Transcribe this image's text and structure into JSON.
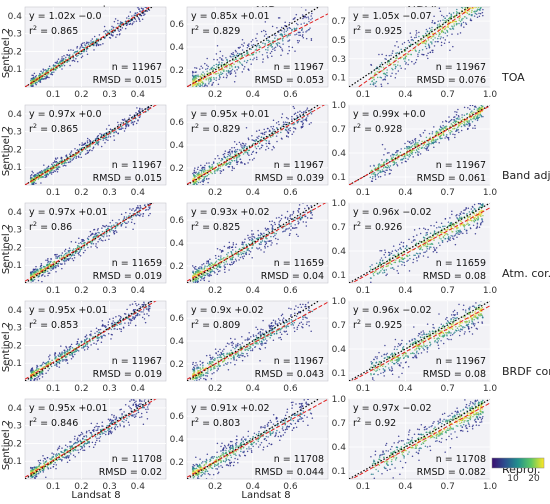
{
  "figure": {
    "column_titles": [
      "red",
      "NIR",
      "NDVI"
    ],
    "row_titles": [
      "TOA",
      "Band adj.",
      "Atm. cor.",
      "BRDF cor.",
      "Reproj."
    ],
    "ylabel": "Sentinel 2",
    "xlabel": "Landsat 8",
    "colorbar": {
      "tick_labels": [
        "10",
        "20"
      ],
      "range": [
        0,
        25
      ],
      "colors": [
        "#3b0f70",
        "#2c4f8f",
        "#21908d",
        "#5dc863",
        "#fde725"
      ]
    },
    "accent_colors": {
      "points": "#2a2a8a",
      "one_to_one": "#000000",
      "fit_line": "#e02020",
      "panel_bg": "#f2f2f6"
    }
  },
  "chart_data": [
    {
      "type": "scatter",
      "col": 0,
      "row": 0,
      "title": "red",
      "row_label": "TOA",
      "xlim": [
        0,
        0.5
      ],
      "ylim": [
        0,
        0.45
      ],
      "xticks": [
        "0.1",
        "0.2",
        "0.3",
        "0.4"
      ],
      "xtick_values": [
        0.1,
        0.2,
        0.3,
        0.4
      ],
      "yticks": [
        "0.1",
        "0.2",
        "0.3",
        "0.4"
      ],
      "ytick_values": [
        0.1,
        0.2,
        0.3,
        0.4
      ],
      "equation": "y = 1.02x −0.0",
      "r2_label": "r",
      "r2_value": "= 0.865",
      "n": "n = 11967",
      "rmsd": "RMSD = 0.015",
      "slope": 1.02,
      "intercept": 0.0,
      "n_value": 11967,
      "rmsd_value": 0.015,
      "r2": 0.865
    },
    {
      "type": "scatter",
      "col": 1,
      "row": 0,
      "title": "NIR",
      "row_label": "TOA",
      "xlim": [
        0.05,
        0.8
      ],
      "ylim": [
        0.05,
        0.75
      ],
      "xticks": [
        "0.2",
        "0.4",
        "0.6"
      ],
      "xtick_values": [
        0.2,
        0.4,
        0.6
      ],
      "yticks": [
        "0.2",
        "0.4",
        "0.6"
      ],
      "ytick_values": [
        0.2,
        0.4,
        0.6
      ],
      "equation": "y = 0.85x +0.01",
      "r2_label": "r",
      "r2_value": "= 0.829",
      "n": "n = 11967",
      "rmsd": "RMSD = 0.053",
      "slope": 0.85,
      "intercept": 0.01,
      "n_value": 11967,
      "rmsd_value": 0.053,
      "r2": 0.829
    },
    {
      "type": "scatter",
      "col": 2,
      "row": 0,
      "title": "NDVI",
      "row_label": "TOA",
      "xlim": [
        0,
        1.0
      ],
      "ylim": [
        0,
        0.85
      ],
      "xticks": [
        "0.1",
        "0.4",
        "0.7",
        "1.0"
      ],
      "xtick_values": [
        0.1,
        0.4,
        0.7,
        1.0
      ],
      "yticks": [
        "0.1",
        "0.3",
        "0.5",
        "0.7"
      ],
      "ytick_values": [
        0.1,
        0.3,
        0.5,
        0.7
      ],
      "equation": "y = 1.05x −0.07",
      "r2_label": "r",
      "r2_value": "= 0.925",
      "n": "n = 11967",
      "rmsd": "RMSD = 0.076",
      "slope": 1.05,
      "intercept": -0.07,
      "n_value": 11967,
      "rmsd_value": 0.076,
      "r2": 0.925
    },
    {
      "type": "scatter",
      "col": 0,
      "row": 1,
      "title": "red",
      "row_label": "Band adj.",
      "xlim": [
        0,
        0.5
      ],
      "ylim": [
        0,
        0.45
      ],
      "xticks": [
        "0.1",
        "0.2",
        "0.3",
        "0.4"
      ],
      "xtick_values": [
        0.1,
        0.2,
        0.3,
        0.4
      ],
      "yticks": [
        "0.1",
        "0.2",
        "0.3",
        "0.4"
      ],
      "ytick_values": [
        0.1,
        0.2,
        0.3,
        0.4
      ],
      "equation": "y = 0.97x +0.0",
      "r2_label": "r",
      "r2_value": "= 0.865",
      "n": "n = 11967",
      "rmsd": "RMSD = 0.015",
      "slope": 0.97,
      "intercept": 0.0,
      "n_value": 11967,
      "rmsd_value": 0.015,
      "r2": 0.865
    },
    {
      "type": "scatter",
      "col": 1,
      "row": 1,
      "title": "NIR",
      "row_label": "Band adj.",
      "xlim": [
        0.05,
        0.8
      ],
      "ylim": [
        0.05,
        0.75
      ],
      "xticks": [
        "0.2",
        "0.4",
        "0.6"
      ],
      "xtick_values": [
        0.2,
        0.4,
        0.6
      ],
      "yticks": [
        "0.2",
        "0.4",
        "0.6"
      ],
      "ytick_values": [
        0.2,
        0.4,
        0.6
      ],
      "equation": "y = 0.95x +0.01",
      "r2_label": "r",
      "r2_value": "= 0.829",
      "n": "n = 11967",
      "rmsd": "RMSD = 0.039",
      "slope": 0.95,
      "intercept": 0.01,
      "n_value": 11967,
      "rmsd_value": 0.039,
      "r2": 0.829
    },
    {
      "type": "scatter",
      "col": 2,
      "row": 1,
      "title": "NDVI",
      "row_label": "Band adj.",
      "xlim": [
        0,
        1.0
      ],
      "ylim": [
        0,
        1.0
      ],
      "xticks": [
        "0.1",
        "0.4",
        "0.7",
        "1.0"
      ],
      "xtick_values": [
        0.1,
        0.4,
        0.7,
        1.0
      ],
      "yticks": [
        "0.1",
        "0.4",
        "0.7",
        "1.0"
      ],
      "ytick_values": [
        0.1,
        0.4,
        0.7,
        1.0
      ],
      "equation": "y = 0.99x +0.0",
      "r2_label": "r",
      "r2_value": "= 0.928",
      "n": "n = 11967",
      "rmsd": "RMSD = 0.061",
      "slope": 0.99,
      "intercept": 0.0,
      "n_value": 11967,
      "rmsd_value": 0.061,
      "r2": 0.928
    },
    {
      "type": "scatter",
      "col": 0,
      "row": 2,
      "title": "red",
      "row_label": "Atm. cor.",
      "xlim": [
        0,
        0.5
      ],
      "ylim": [
        0,
        0.45
      ],
      "xticks": [
        "0.1",
        "0.2",
        "0.3",
        "0.4"
      ],
      "xtick_values": [
        0.1,
        0.2,
        0.3,
        0.4
      ],
      "yticks": [
        "0.1",
        "0.2",
        "0.3",
        "0.4"
      ],
      "ytick_values": [
        0.1,
        0.2,
        0.3,
        0.4
      ],
      "equation": "y = 0.97x +0.01",
      "r2_label": "r",
      "r2_value": "= 0.86",
      "n": "n = 11659",
      "rmsd": "RMSD = 0.019",
      "slope": 0.97,
      "intercept": 0.01,
      "n_value": 11659,
      "rmsd_value": 0.019,
      "r2": 0.86
    },
    {
      "type": "scatter",
      "col": 1,
      "row": 2,
      "title": "NIR",
      "row_label": "Atm. cor.",
      "xlim": [
        0.05,
        0.8
      ],
      "ylim": [
        0.05,
        0.75
      ],
      "xticks": [
        "0.2",
        "0.4",
        "0.6"
      ],
      "xtick_values": [
        0.2,
        0.4,
        0.6
      ],
      "yticks": [
        "0.2",
        "0.4",
        "0.6"
      ],
      "ytick_values": [
        0.2,
        0.4,
        0.6
      ],
      "equation": "y = 0.93x +0.02",
      "r2_label": "r",
      "r2_value": "= 0.825",
      "n": "n = 11659",
      "rmsd": "RMSD = 0.04",
      "slope": 0.93,
      "intercept": 0.02,
      "n_value": 11659,
      "rmsd_value": 0.04,
      "r2": 0.825
    },
    {
      "type": "scatter",
      "col": 2,
      "row": 2,
      "title": "NDVI",
      "row_label": "Atm. cor.",
      "xlim": [
        0,
        1.0
      ],
      "ylim": [
        0,
        1.0
      ],
      "xticks": [
        "0.1",
        "0.4",
        "0.7",
        "1.0"
      ],
      "xtick_values": [
        0.1,
        0.4,
        0.7,
        1.0
      ],
      "yticks": [
        "0.1",
        "0.4",
        "0.7",
        "1.0"
      ],
      "ytick_values": [
        0.1,
        0.4,
        0.7,
        1.0
      ],
      "equation": "y = 0.96x −0.02",
      "r2_label": "r",
      "r2_value": "= 0.926",
      "n": "n = 11659",
      "rmsd": "RMSD = 0.08",
      "slope": 0.96,
      "intercept": -0.02,
      "n_value": 11659,
      "rmsd_value": 0.08,
      "r2": 0.926
    },
    {
      "type": "scatter",
      "col": 0,
      "row": 3,
      "title": "red",
      "row_label": "BRDF cor.",
      "xlim": [
        0,
        0.5
      ],
      "ylim": [
        0,
        0.45
      ],
      "xticks": [
        "0.1",
        "0.2",
        "0.3",
        "0.4"
      ],
      "xtick_values": [
        0.1,
        0.2,
        0.3,
        0.4
      ],
      "yticks": [
        "0.1",
        "0.2",
        "0.3",
        "0.4"
      ],
      "ytick_values": [
        0.1,
        0.2,
        0.3,
        0.4
      ],
      "equation": "y = 0.95x +0.01",
      "r2_label": "r",
      "r2_value": "= 0.853",
      "n": "n = 11967",
      "rmsd": "RMSD = 0.019",
      "slope": 0.95,
      "intercept": 0.01,
      "n_value": 11967,
      "rmsd_value": 0.019,
      "r2": 0.853
    },
    {
      "type": "scatter",
      "col": 1,
      "row": 3,
      "title": "NIR",
      "row_label": "BRDF cor.",
      "xlim": [
        0.05,
        0.8
      ],
      "ylim": [
        0.05,
        0.75
      ],
      "xticks": [
        "0.2",
        "0.4",
        "0.6"
      ],
      "xtick_values": [
        0.2,
        0.4,
        0.6
      ],
      "yticks": [
        "0.2",
        "0.4",
        "0.6"
      ],
      "ytick_values": [
        0.2,
        0.4,
        0.6
      ],
      "equation": "y = 0.9x +0.02",
      "r2_label": "r",
      "r2_value": "= 0.809",
      "n": "n = 11967",
      "rmsd": "RMSD = 0.043",
      "slope": 0.9,
      "intercept": 0.02,
      "n_value": 11967,
      "rmsd_value": 0.043,
      "r2": 0.809
    },
    {
      "type": "scatter",
      "col": 2,
      "row": 3,
      "title": "NDVI",
      "row_label": "BRDF cor.",
      "xlim": [
        0,
        1.0
      ],
      "ylim": [
        0,
        1.0
      ],
      "xticks": [
        "0.1",
        "0.4",
        "0.7",
        "1.0"
      ],
      "xtick_values": [
        0.1,
        0.4,
        0.7,
        1.0
      ],
      "yticks": [
        "0.1",
        "0.4",
        "0.7",
        "1.0"
      ],
      "ytick_values": [
        0.1,
        0.4,
        0.7,
        1.0
      ],
      "equation": "y = 0.96x −0.02",
      "r2_label": "r",
      "r2_value": "= 0.925",
      "n": "n = 11967",
      "rmsd": "RMSD = 0.08",
      "slope": 0.96,
      "intercept": -0.02,
      "n_value": 11967,
      "rmsd_value": 0.08,
      "r2": 0.925
    },
    {
      "type": "scatter",
      "col": 0,
      "row": 4,
      "title": "red",
      "row_label": "Reproj.",
      "xlim": [
        0,
        0.5
      ],
      "ylim": [
        0,
        0.45
      ],
      "xticks": [
        "0.1",
        "0.2",
        "0.3",
        "0.4"
      ],
      "xtick_values": [
        0.1,
        0.2,
        0.3,
        0.4
      ],
      "yticks": [
        "0.1",
        "0.2",
        "0.3",
        "0.4"
      ],
      "ytick_values": [
        0.1,
        0.2,
        0.3,
        0.4
      ],
      "equation": "y = 0.95x +0.01",
      "r2_label": "r",
      "r2_value": "= 0.846",
      "n": "n = 11708",
      "rmsd": "RMSD = 0.02",
      "slope": 0.95,
      "intercept": 0.01,
      "n_value": 11708,
      "rmsd_value": 0.02,
      "r2": 0.846
    },
    {
      "type": "scatter",
      "col": 1,
      "row": 4,
      "title": "NIR",
      "row_label": "Reproj.",
      "xlim": [
        0.05,
        0.8
      ],
      "ylim": [
        0.05,
        0.75
      ],
      "xticks": [
        "0.2",
        "0.4",
        "0.6"
      ],
      "xtick_values": [
        0.2,
        0.4,
        0.6
      ],
      "yticks": [
        "0.2",
        "0.4",
        "0.6"
      ],
      "ytick_values": [
        0.2,
        0.4,
        0.6
      ],
      "equation": "y = 0.91x +0.02",
      "r2_label": "r",
      "r2_value": "= 0.803",
      "n": "n = 11708",
      "rmsd": "RMSD = 0.044",
      "slope": 0.91,
      "intercept": 0.02,
      "n_value": 11708,
      "rmsd_value": 0.044,
      "r2": 0.803
    },
    {
      "type": "scatter",
      "col": 2,
      "row": 4,
      "title": "NDVI",
      "row_label": "Reproj.",
      "xlim": [
        0,
        1.0
      ],
      "ylim": [
        0,
        1.0
      ],
      "xticks": [
        "0.1",
        "0.4",
        "0.7",
        "1.0"
      ],
      "xtick_values": [
        0.1,
        0.4,
        0.7,
        1.0
      ],
      "yticks": [
        "0.1",
        "0.4",
        "0.7",
        "1.0"
      ],
      "ytick_values": [
        0.1,
        0.4,
        0.7,
        1.0
      ],
      "equation": "y = 0.97x −0.02",
      "r2_label": "r",
      "r2_value": "= 0.92",
      "n": "n = 11708",
      "rmsd": "RMSD = 0.082",
      "slope": 0.97,
      "intercept": -0.02,
      "n_value": 11708,
      "rmsd_value": 0.082,
      "r2": 0.92
    }
  ]
}
